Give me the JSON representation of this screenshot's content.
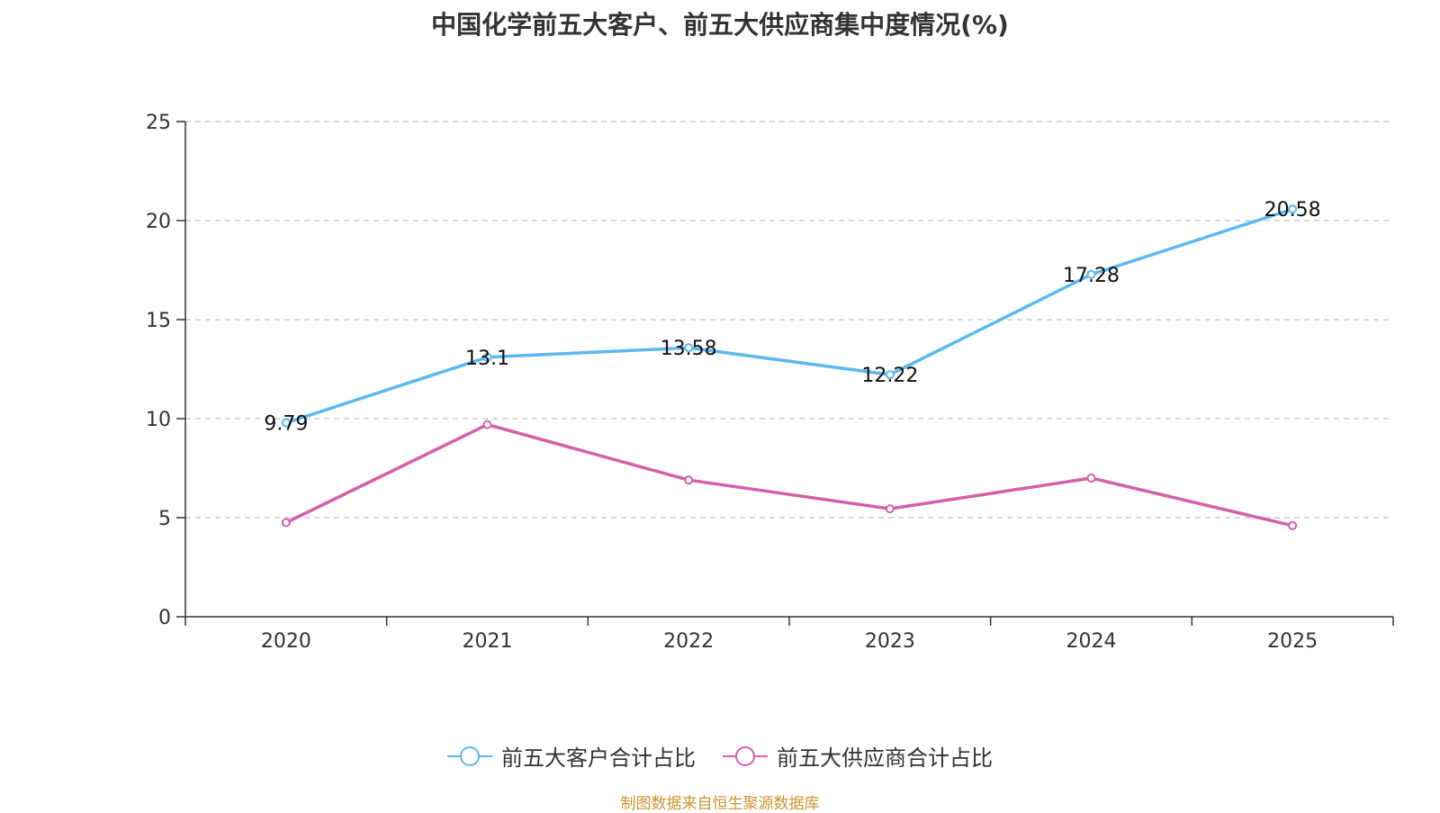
{
  "chart_data": {
    "type": "line",
    "title": "中国化学前五大客户、前五大供应商集中度情况(%)",
    "categories": [
      "2020",
      "2021",
      "2022",
      "2023",
      "2024",
      "2025"
    ],
    "y_ticks": [
      "0",
      "5",
      "10",
      "15",
      "20",
      "25"
    ],
    "ylim": [
      0,
      25
    ],
    "grid": true,
    "legend_position": "bottom-center",
    "series": [
      {
        "name": "前五大客户合计占比",
        "color": "#5bb8ee",
        "values": [
          9.79,
          13.1,
          13.58,
          12.22,
          17.28,
          20.58
        ],
        "labels": [
          "9.79",
          "13.1",
          "13.58",
          "12.22",
          "17.28",
          "20.58"
        ]
      },
      {
        "name": "前五大供应商合计占比",
        "color": "#d460a6",
        "values": [
          4.75,
          9.7,
          6.9,
          5.45,
          7.0,
          4.6
        ]
      }
    ]
  },
  "source_note": "制图数据来自恒生聚源数据库"
}
